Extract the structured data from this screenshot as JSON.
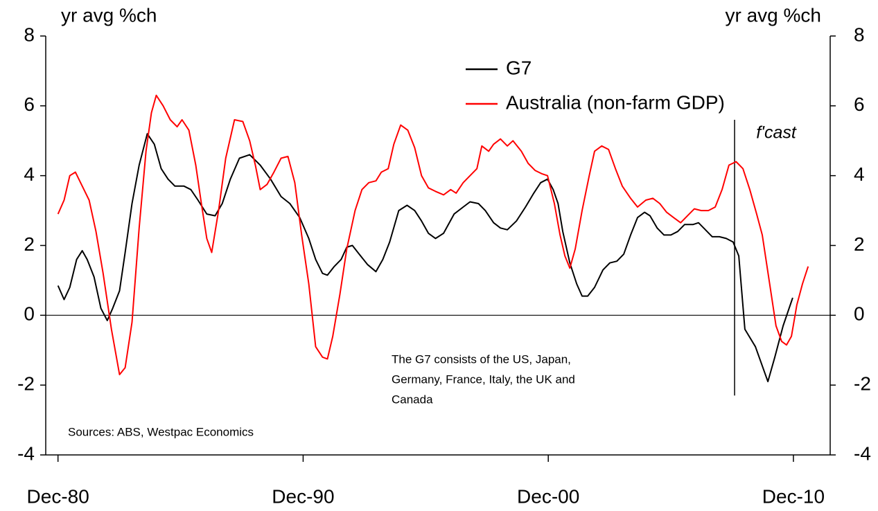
{
  "chart_data": {
    "type": "line",
    "y_label_left": "yr avg %ch",
    "y_label_right": "yr avg %ch",
    "xlim": [
      1980.5,
      2012.5
    ],
    "xticks": [
      {
        "value": 1981,
        "label": "Dec-80"
      },
      {
        "value": 1991,
        "label": "Dec-90"
      },
      {
        "value": 2001,
        "label": "Dec-00"
      },
      {
        "value": 2011,
        "label": "Dec-10"
      }
    ],
    "ylim": [
      -4,
      8
    ],
    "yticks": [
      -4,
      -2,
      0,
      2,
      4,
      6,
      8
    ],
    "y2lim": [
      -4,
      8
    ],
    "y2ticks": [
      -4,
      -2,
      0,
      2,
      4,
      6,
      8
    ],
    "legend": "top",
    "series": [
      {
        "name": "G7",
        "color": "#000000",
        "x": [
          1981.0,
          1981.25,
          1981.48,
          1981.76,
          1981.99,
          1982.19,
          1982.47,
          1982.75,
          1983.01,
          1983.23,
          1983.51,
          1983.74,
          1984.02,
          1984.31,
          1984.64,
          1984.93,
          1985.21,
          1985.49,
          1985.77,
          1986.14,
          1986.42,
          1986.71,
          1987.07,
          1987.41,
          1987.7,
          1988.03,
          1988.4,
          1988.82,
          1989.25,
          1989.67,
          1990.1,
          1990.46,
          1990.86,
          1991.23,
          1991.51,
          1991.79,
          1991.99,
          1992.27,
          1992.55,
          1992.78,
          1993.01,
          1993.29,
          1993.63,
          1993.97,
          1994.25,
          1994.53,
          1994.9,
          1995.24,
          1995.55,
          1995.83,
          1996.11,
          1996.4,
          1996.73,
          1997.16,
          1997.53,
          1997.81,
          1998.15,
          1998.43,
          1998.77,
          1999.05,
          1999.33,
          1999.7,
          2000.07,
          2000.41,
          2000.69,
          2000.97,
          2001.2,
          2001.4,
          2001.59,
          2001.88,
          2002.16,
          2002.38,
          2002.61,
          2002.89,
          2003.23,
          2003.51,
          2003.8,
          2004.08,
          2004.36,
          2004.64,
          2004.93,
          2005.15,
          2005.44,
          2005.72,
          2006.0,
          2006.28,
          2006.56,
          2006.9,
          2007.13,
          2007.41,
          2007.69,
          2007.98,
          2008.26,
          2008.54,
          2008.77,
          2009.02,
          2009.45,
          2009.96,
          2010.24,
          2010.58,
          2010.97
        ],
        "values": [
          0.85,
          0.45,
          0.8,
          1.6,
          1.85,
          1.6,
          1.1,
          0.2,
          -0.15,
          0.2,
          0.7,
          1.8,
          3.2,
          4.3,
          5.2,
          4.9,
          4.2,
          3.9,
          3.7,
          3.7,
          3.6,
          3.3,
          2.9,
          2.85,
          3.2,
          3.9,
          4.5,
          4.6,
          4.3,
          3.9,
          3.4,
          3.2,
          2.8,
          2.2,
          1.6,
          1.2,
          1.15,
          1.4,
          1.6,
          1.95,
          2.0,
          1.75,
          1.45,
          1.25,
          1.6,
          2.1,
          3.0,
          3.15,
          3.0,
          2.7,
          2.35,
          2.2,
          2.35,
          2.9,
          3.1,
          3.25,
          3.2,
          3.0,
          2.65,
          2.5,
          2.45,
          2.7,
          3.1,
          3.5,
          3.8,
          3.9,
          3.6,
          3.2,
          2.4,
          1.5,
          0.9,
          0.55,
          0.55,
          0.8,
          1.3,
          1.5,
          1.55,
          1.75,
          2.3,
          2.8,
          2.95,
          2.85,
          2.5,
          2.3,
          2.3,
          2.4,
          2.6,
          2.6,
          2.65,
          2.45,
          2.25,
          2.25,
          2.2,
          2.1,
          1.7,
          -0.4,
          -0.9,
          -1.9,
          -1.2,
          -0.3,
          0.5
        ]
      },
      {
        "name": "Australia (non-farm GDP)",
        "color": "#ff0000",
        "x": [
          1981.0,
          1981.25,
          1981.48,
          1981.71,
          1981.99,
          1982.27,
          1982.55,
          1982.84,
          1983.18,
          1983.51,
          1983.74,
          1984.02,
          1984.31,
          1984.59,
          1984.81,
          1985.01,
          1985.29,
          1985.58,
          1985.86,
          1986.06,
          1986.34,
          1986.62,
          1986.85,
          1987.07,
          1987.27,
          1987.55,
          1987.84,
          1988.2,
          1988.54,
          1988.82,
          1989.05,
          1989.25,
          1989.53,
          1989.81,
          1990.1,
          1990.38,
          1990.66,
          1990.94,
          1991.23,
          1991.51,
          1991.79,
          1991.99,
          1992.21,
          1992.5,
          1992.78,
          1993.12,
          1993.4,
          1993.68,
          1993.97,
          1994.19,
          1994.47,
          1994.7,
          1994.98,
          1995.27,
          1995.55,
          1995.83,
          1996.11,
          1996.4,
          1996.73,
          1997.02,
          1997.24,
          1997.53,
          1997.81,
          1998.09,
          1998.29,
          1998.57,
          1998.77,
          1999.05,
          1999.33,
          1999.56,
          1999.9,
          2000.18,
          2000.46,
          2000.75,
          2000.97,
          2001.25,
          2001.48,
          2001.68,
          2001.88,
          2002.1,
          2002.38,
          2002.67,
          2002.89,
          2003.18,
          2003.46,
          2003.74,
          2004.02,
          2004.36,
          2004.64,
          2004.98,
          2005.27,
          2005.55,
          2005.83,
          2006.11,
          2006.4,
          2006.68,
          2006.96,
          2007.24,
          2007.53,
          2007.81,
          2008.09,
          2008.37,
          2008.66,
          2008.94,
          2009.22,
          2009.5,
          2009.73,
          2010.01,
          2010.29,
          2010.52,
          2010.72,
          2010.92,
          2011.14,
          2011.37,
          2011.6
        ],
        "values": [
          2.9,
          3.3,
          4.0,
          4.1,
          3.7,
          3.3,
          2.4,
          1.2,
          -0.4,
          -1.7,
          -1.5,
          -0.2,
          2.5,
          4.7,
          5.8,
          6.3,
          6.0,
          5.6,
          5.4,
          5.6,
          5.3,
          4.3,
          3.2,
          2.2,
          1.8,
          3.0,
          4.5,
          5.6,
          5.55,
          5.0,
          4.3,
          3.6,
          3.75,
          4.1,
          4.5,
          4.55,
          3.8,
          2.3,
          0.9,
          -0.9,
          -1.2,
          -1.25,
          -0.6,
          0.6,
          1.9,
          3.0,
          3.6,
          3.8,
          3.85,
          4.1,
          4.2,
          4.9,
          5.45,
          5.3,
          4.8,
          4.0,
          3.65,
          3.55,
          3.45,
          3.6,
          3.5,
          3.8,
          4.0,
          4.2,
          4.85,
          4.7,
          4.9,
          5.05,
          4.85,
          5.0,
          4.7,
          4.35,
          4.15,
          4.05,
          4.0,
          3.2,
          2.3,
          1.7,
          1.35,
          1.9,
          3.0,
          4.0,
          4.7,
          4.85,
          4.75,
          4.2,
          3.7,
          3.35,
          3.1,
          3.3,
          3.35,
          3.2,
          2.95,
          2.8,
          2.65,
          2.85,
          3.05,
          3.0,
          3.0,
          3.1,
          3.6,
          4.3,
          4.4,
          4.2,
          3.6,
          2.9,
          2.3,
          1.0,
          -0.3,
          -0.75,
          -0.85,
          -0.6,
          0.3,
          0.9,
          1.4
        ]
      }
    ],
    "forecast_line": {
      "x": 2008.6,
      "y": [
        -2.3,
        5.6
      ],
      "label": "f'cast"
    },
    "annotation": [
      "The G7 consists of the US, Japan,",
      "Germany, France, Italy, the UK and",
      "Canada"
    ],
    "source": "Sources: ABS, Westpac Economics"
  }
}
